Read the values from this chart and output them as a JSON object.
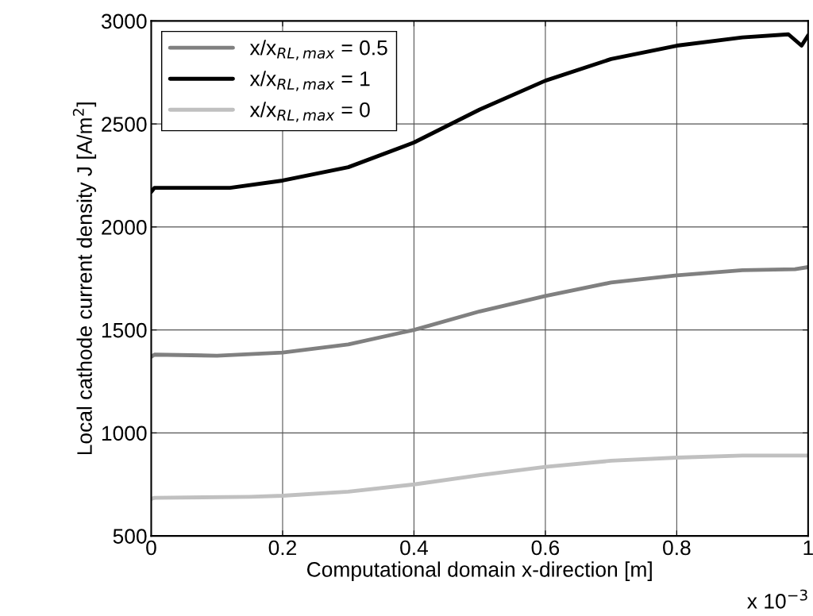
{
  "chart_data": {
    "type": "line",
    "xlabel": "Computational domain x-direction [m]",
    "ylabel": "Local cathode current density J [A/m$^{2}$]",
    "xlim": [
      0,
      1
    ],
    "ylim": [
      500,
      3000
    ],
    "xticks": [
      0,
      0.2,
      0.4,
      0.6,
      0.8,
      1
    ],
    "yticks": [
      500,
      1000,
      1500,
      2000,
      2500,
      3000
    ],
    "grid": true,
    "legend": "top left",
    "line_style": "solid",
    "marker": "none",
    "annotations": [
      "x 10$^{−3}$"
    ],
    "series": [
      {
        "name": "x/x$_{RL,max}$ = 0.5",
        "color": "#808080",
        "x": [
          0,
          0.005,
          0.1,
          0.2,
          0.3,
          0.4,
          0.5,
          0.6,
          0.7,
          0.8,
          0.9,
          0.98,
          1
        ],
        "values": [
          1370,
          1380,
          1375,
          1390,
          1430,
          1500,
          1590,
          1665,
          1730,
          1765,
          1790,
          1795,
          1805
        ]
      },
      {
        "name": "x/x$_{RL,max}$ = 1",
        "color": "#000000",
        "x": [
          0,
          0.005,
          0.12,
          0.2,
          0.3,
          0.4,
          0.5,
          0.6,
          0.7,
          0.8,
          0.9,
          0.97,
          0.99,
          1
        ],
        "values": [
          2170,
          2190,
          2190,
          2225,
          2290,
          2410,
          2570,
          2710,
          2815,
          2880,
          2920,
          2935,
          2880,
          2930
        ]
      },
      {
        "name": "x/x$_{RL,max}$ = 0",
        "color": "#c0c0c0",
        "x": [
          0,
          0.005,
          0.15,
          0.2,
          0.3,
          0.4,
          0.5,
          0.6,
          0.7,
          0.8,
          0.9,
          1
        ],
        "values": [
          680,
          685,
          690,
          695,
          715,
          750,
          795,
          835,
          865,
          880,
          890,
          890
        ]
      }
    ]
  }
}
